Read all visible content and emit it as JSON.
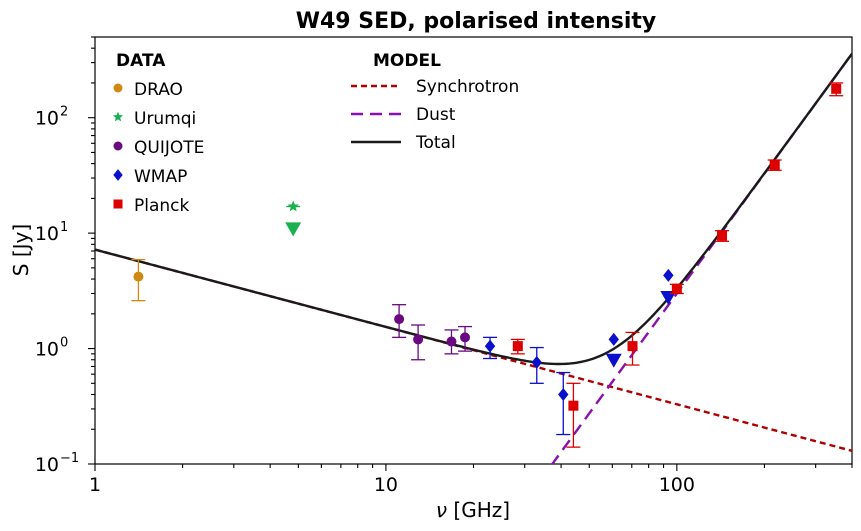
{
  "chart_data": {
    "type": "scatter",
    "title": "W49 SED, polarised intensity",
    "xlabel_symbol": "ν",
    "xlabel_unit": " [GHz]",
    "ylabel": "S [Jy]",
    "xscale": "log",
    "yscale": "log",
    "xlim": [
      1,
      400
    ],
    "ylim": [
      0.1,
      500
    ],
    "x_ticks": [
      {
        "value": 1,
        "label": "1"
      },
      {
        "value": 10,
        "label": "10"
      },
      {
        "value": 100,
        "label": "100"
      }
    ],
    "y_ticks": [
      {
        "value": 0.1,
        "base": "10",
        "exp": "−1"
      },
      {
        "value": 1,
        "base": "10",
        "exp": "0"
      },
      {
        "value": 10,
        "base": "10",
        "exp": "1"
      },
      {
        "value": 100,
        "base": "10",
        "exp": "2"
      }
    ],
    "legend": {
      "data_title": "DATA",
      "model_title": "MODEL",
      "data_entries": [
        "DRAO",
        "Urumqi",
        "QUIJOTE",
        "WMAP",
        "Planck"
      ],
      "model_entries": [
        "Synchrotron",
        "Dust",
        "Total"
      ]
    },
    "datasets": [
      {
        "name": "DRAO",
        "color": "#d08a10",
        "marker": "circle",
        "points": [
          {
            "x": 1.41,
            "y": 4.2,
            "lo": 2.6,
            "hi": 5.9
          }
        ]
      },
      {
        "name": "Urumqi",
        "color": "#18b050",
        "marker": "star",
        "points": [
          {
            "x": 4.8,
            "y": 17,
            "lo": 17,
            "hi": 17
          }
        ],
        "upper_limits": [
          {
            "x": 4.8,
            "y": 11
          }
        ]
      },
      {
        "name": "QUIJOTE",
        "color": "#6a0a80",
        "marker": "circle",
        "points": [
          {
            "x": 11.1,
            "y": 1.8,
            "lo": 1.25,
            "hi": 2.4
          },
          {
            "x": 12.9,
            "y": 1.2,
            "lo": 0.8,
            "hi": 1.6
          },
          {
            "x": 16.8,
            "y": 1.15,
            "lo": 0.9,
            "hi": 1.45
          },
          {
            "x": 18.7,
            "y": 1.25,
            "lo": 0.95,
            "hi": 1.55
          }
        ]
      },
      {
        "name": "WMAP",
        "color": "#0a10cc",
        "marker": "diamond",
        "points": [
          {
            "x": 22.8,
            "y": 1.05,
            "lo": 0.82,
            "hi": 1.25
          },
          {
            "x": 33.0,
            "y": 0.76,
            "lo": 0.5,
            "hi": 1.02
          },
          {
            "x": 40.7,
            "y": 0.4,
            "lo": 0.18,
            "hi": 0.62
          },
          {
            "x": 60.7,
            "y": 1.2,
            "lo": 1.2,
            "hi": 1.2
          },
          {
            "x": 93.5,
            "y": 4.3,
            "lo": 4.3,
            "hi": 4.3
          }
        ],
        "upper_limits": [
          {
            "x": 60.7,
            "y": 0.8
          },
          {
            "x": 93.5,
            "y": 2.8
          }
        ]
      },
      {
        "name": "Planck",
        "color": "#dd0000",
        "marker": "square",
        "points": [
          {
            "x": 28.4,
            "y": 1.05,
            "lo": 0.9,
            "hi": 1.2
          },
          {
            "x": 44.1,
            "y": 0.32,
            "lo": 0.14,
            "hi": 0.5
          },
          {
            "x": 70.4,
            "y": 1.05,
            "lo": 0.72,
            "hi": 1.38
          },
          {
            "x": 100,
            "y": 3.3,
            "lo": 3.0,
            "hi": 3.6
          },
          {
            "x": 143,
            "y": 9.5,
            "lo": 8.5,
            "hi": 10.5
          },
          {
            "x": 217,
            "y": 39,
            "lo": 35,
            "hi": 43
          },
          {
            "x": 353,
            "y": 178,
            "lo": 155,
            "hi": 200
          }
        ]
      }
    ],
    "models": [
      {
        "name": "Synchrotron",
        "color": "#b00000",
        "dash": "dashed",
        "form": "power_law",
        "amplitude_at_1GHz": 7.2,
        "index": -0.67
      },
      {
        "name": "Dust",
        "color": "#8a10b0",
        "dash": "long-dashed",
        "form": "power_law",
        "amplitude_at_100GHz": 3.0,
        "index": 3.45
      },
      {
        "name": "Total",
        "color": "#1a1a1a",
        "dash": "solid",
        "form": "sum"
      }
    ]
  }
}
